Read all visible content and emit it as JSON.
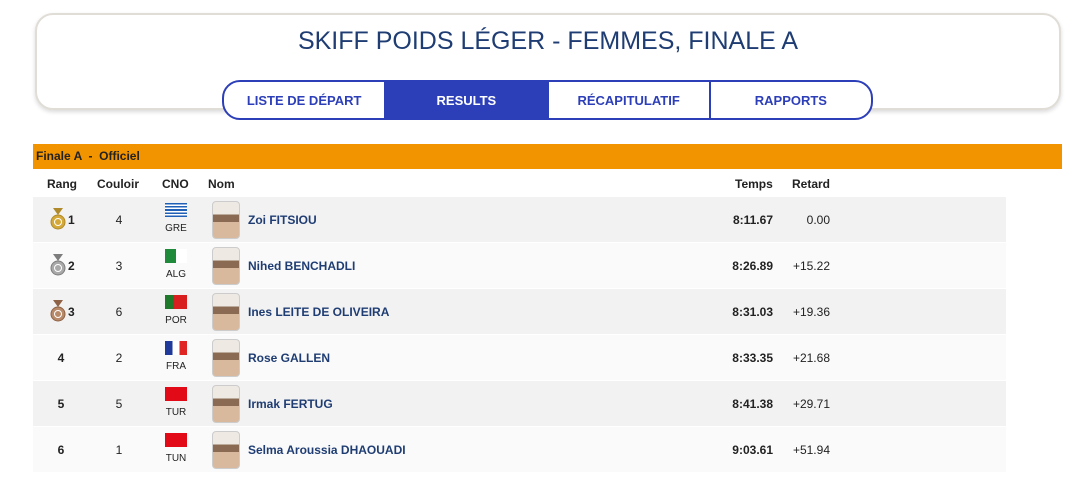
{
  "header": {
    "title": "SKIFF POIDS LÉGER - FEMMES, FINALE A"
  },
  "tabs": [
    "LISTE DE DÉPART",
    "RESULTS",
    "RÉCAPITULATIF",
    "RAPPORTS"
  ],
  "section": {
    "title": "Finale A  -  Officiel"
  },
  "table": {
    "columns": [
      "Rang",
      "Couloir",
      "CNO",
      "Nom",
      "Temps",
      "Retard"
    ],
    "rows": [
      [
        "1",
        "4",
        "GRE",
        "Zoi FITSIOU",
        "8:11.67",
        "0.00"
      ],
      [
        "2",
        "3",
        "ALG",
        "Nihed BENCHADLI",
        "8:26.89",
        "+15.22"
      ],
      [
        "3",
        "6",
        "POR",
        "Ines LEITE DE OLIVEIRA",
        "8:31.03",
        "+19.36"
      ],
      [
        "4",
        "2",
        "FRA",
        "Rose GALLEN",
        "8:33.35",
        "+21.68"
      ],
      [
        "5",
        "5",
        "TUR",
        "Irmak FERTUG",
        "8:41.38",
        "+29.71"
      ],
      [
        "6",
        "1",
        "TUN",
        "Selma Aroussia DHAOUADI",
        "9:03.61",
        "+51.94"
      ]
    ]
  }
}
